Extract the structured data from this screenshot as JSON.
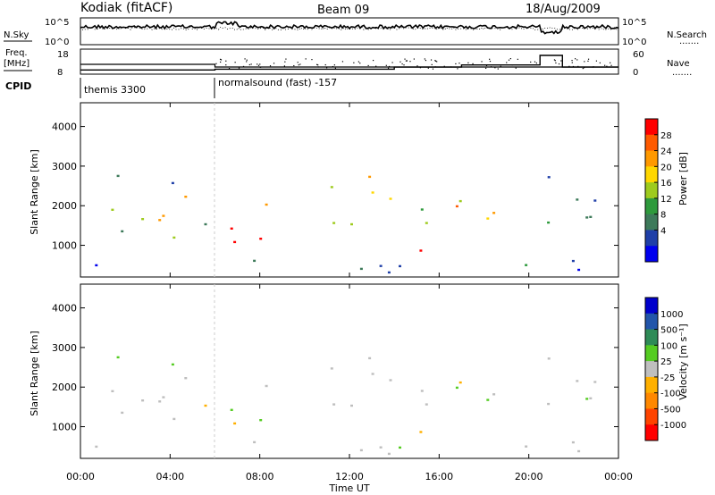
{
  "header": {
    "station": "Kodiak (fitACF)",
    "beam": "Beam 09",
    "date": "18/Aug/2009"
  },
  "side_labels": {
    "nsky": "N.Sky",
    "nsearch": "N.Search",
    "freq_line1": "Freq.",
    "freq_line2": "[MHz]",
    "nave": "Nave",
    "cpid": "CPID",
    "dots": "......."
  },
  "cpid_segments": [
    {
      "label": "themis 3300",
      "start": "00:00",
      "end": "06:00"
    },
    {
      "label": "normalsound (fast) -157",
      "start": "06:00",
      "end": "24:00"
    }
  ],
  "colors": {
    "power_scale": [
      "#0000ee",
      "#1f3fa8",
      "#3d7a5a",
      "#2e9a3c",
      "#9ecb1e",
      "#ffd700",
      "#ff9900",
      "#ff5a00",
      "#ff0000"
    ],
    "velocity_scale": [
      "#0000cc",
      "#2255aa",
      "#2e8b57",
      "#55cc22",
      "#bfbfbf",
      "#ffb000",
      "#ff8800",
      "#ff4400",
      "#ff0000"
    ],
    "gray_scatter": "#bebebe"
  },
  "chart_data": [
    {
      "type": "line",
      "name": "noise-panel",
      "left_axis": {
        "label": "N.Sky",
        "ticks": [
          "10^5",
          "10^0"
        ]
      },
      "right_axis": {
        "label": "N.Search",
        "ticks": [
          "10^5",
          "10^0"
        ]
      }
    },
    {
      "type": "line",
      "name": "frequency-panel",
      "left_axis": {
        "label": "Freq. [MHz]",
        "ticks": [
          18,
          8
        ]
      },
      "right_axis": {
        "label": "Nave",
        "ticks": [
          60,
          0
        ]
      },
      "nave_steps": [
        {
          "start": "00:00",
          "end": "06:00",
          "value": 10
        },
        {
          "start": "06:00",
          "end": "14:00",
          "value": 12
        },
        {
          "start": "14:00",
          "end": "17:00",
          "value": 17
        },
        {
          "start": "17:00",
          "end": "20:30",
          "value": 22
        },
        {
          "start": "20:30",
          "end": "21:30",
          "value": 45
        },
        {
          "start": "21:30",
          "end": "24:00",
          "value": 17
        }
      ]
    },
    {
      "type": "heatmap",
      "name": "power-panel",
      "ylabel": "Slant Range [km]",
      "yticks": [
        1000,
        2000,
        3000,
        4000
      ],
      "ylim": [
        200,
        4600
      ],
      "colorbar": {
        "label": "Power [dB]",
        "ticks": [
          4,
          8,
          12,
          16,
          20,
          24,
          28
        ]
      }
    },
    {
      "type": "heatmap",
      "name": "velocity-panel",
      "ylabel": "Slant Range [km]",
      "yticks": [
        1000,
        2000,
        3000,
        4000
      ],
      "ylim": [
        200,
        4600
      ],
      "colorbar": {
        "label": "Velocity [m s⁻¹]",
        "ticks": [
          1000,
          500,
          100,
          25,
          -25,
          -100,
          -500,
          -1000
        ]
      }
    }
  ],
  "x_axis": {
    "label": "Time UT",
    "ticks": [
      "00:00",
      "04:00",
      "08:00",
      "12:00",
      "16:00",
      "20:00",
      "00:00"
    ],
    "tick_hours": [
      0,
      4,
      8,
      12,
      16,
      20,
      24
    ]
  }
}
